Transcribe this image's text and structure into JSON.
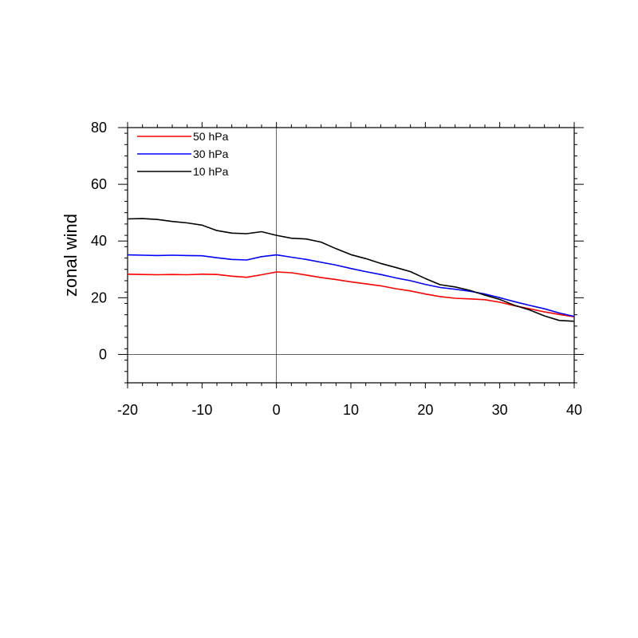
{
  "chart_data": {
    "type": "line",
    "title": "",
    "xlabel": "",
    "ylabel": "zonal wind",
    "xlim": [
      -20,
      40
    ],
    "ylim": [
      -10,
      80
    ],
    "xticks": [
      -20,
      -10,
      0,
      10,
      20,
      30,
      40
    ],
    "yticks": [
      0,
      20,
      40,
      60,
      80
    ],
    "x_minor_step": 2,
    "y_minor_step": 4,
    "reference_lines": {
      "x": 0,
      "y": 0
    },
    "grid": false,
    "legend_position": "top-left",
    "x": [
      -20,
      -18,
      -16,
      -14,
      -12,
      -10,
      -8,
      -6,
      -4,
      -2,
      0,
      2,
      4,
      6,
      8,
      10,
      12,
      14,
      16,
      18,
      20,
      22,
      24,
      26,
      28,
      30,
      32,
      34,
      36,
      38,
      40
    ],
    "series": [
      {
        "name": "50 hPa",
        "color": "#ff0000",
        "values": [
          28.3,
          28.2,
          28.1,
          28.2,
          28.1,
          28.3,
          28.2,
          27.6,
          27.2,
          28.1,
          29.1,
          28.8,
          28.0,
          27.1,
          26.4,
          25.6,
          24.9,
          24.2,
          23.2,
          22.4,
          21.3,
          20.4,
          19.8,
          19.6,
          19.3,
          18.4,
          17.2,
          16.1,
          15.0,
          14.1,
          13.3
        ]
      },
      {
        "name": "30 hPa",
        "color": "#0000ff",
        "values": [
          35.1,
          35.0,
          34.9,
          35.0,
          34.9,
          34.8,
          34.1,
          33.5,
          33.3,
          34.5,
          35.1,
          34.3,
          33.5,
          32.5,
          31.5,
          30.3,
          29.2,
          28.2,
          27.0,
          26.0,
          24.7,
          23.6,
          23.0,
          22.3,
          21.3,
          20.0,
          18.6,
          17.3,
          16.1,
          14.6,
          13.4
        ]
      },
      {
        "name": "10 hPa",
        "color": "#000000",
        "values": [
          47.8,
          47.9,
          47.6,
          46.9,
          46.4,
          45.6,
          43.7,
          42.8,
          42.6,
          43.3,
          42.0,
          41.0,
          40.7,
          39.6,
          37.3,
          35.2,
          33.8,
          32.1,
          30.7,
          29.2,
          26.8,
          24.6,
          23.8,
          22.6,
          20.9,
          19.4,
          17.3,
          15.7,
          13.6,
          12.0,
          11.7
        ]
      }
    ]
  }
}
